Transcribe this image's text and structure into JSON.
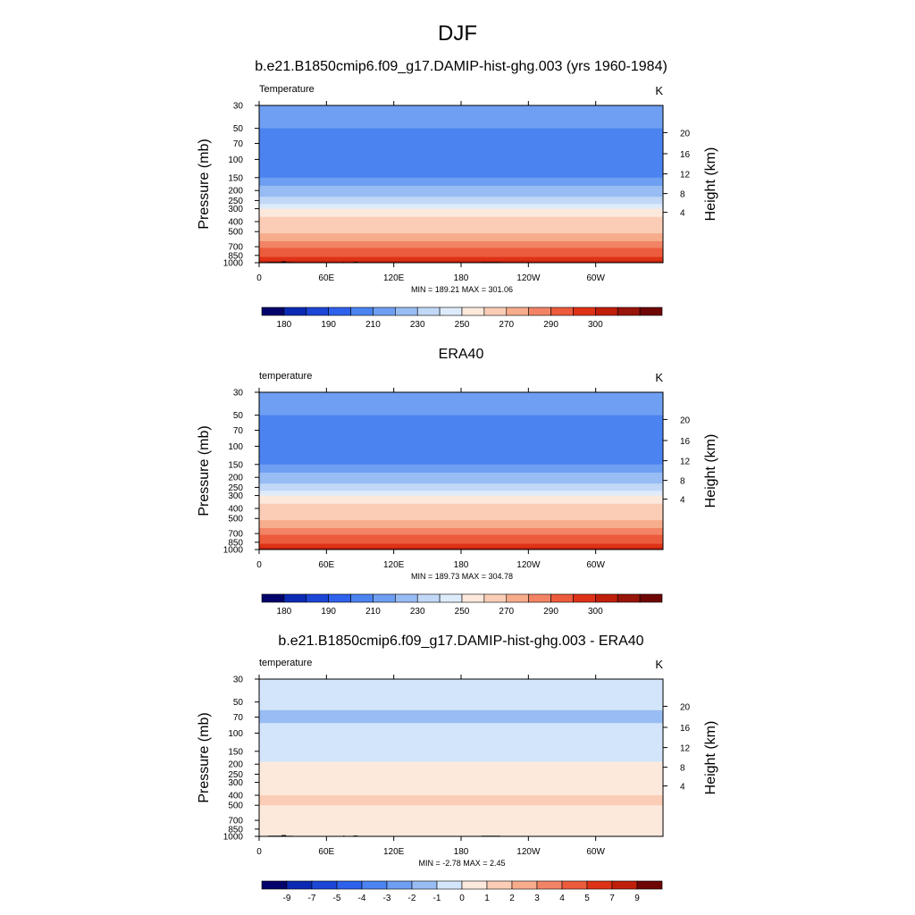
{
  "figure": {
    "title": "DJF"
  },
  "chart_data": [
    {
      "type": "heatmap",
      "title": "b.e21.B1850cmip6.f09_g17.DAMIP-hist-ghg.003 (yrs 1960-1984)",
      "left_string": "Temperature",
      "right_string": "K",
      "xlabel": "",
      "ylabel": "Pressure (mb)",
      "ylabel_right": "Height (km)",
      "x_ticks": [
        "0",
        "60E",
        "120E",
        "180",
        "120W",
        "60W"
      ],
      "x_range": [
        0,
        360
      ],
      "y_ticks": [
        "30",
        "50",
        "70",
        "100",
        "150",
        "200",
        "250",
        "300",
        "400",
        "500",
        "700",
        "850",
        "1000"
      ],
      "y_range": [
        30,
        1000
      ],
      "y_scale": "log",
      "height_ticks": [
        "20",
        "16",
        "12",
        "8",
        "4"
      ],
      "levels": [
        175,
        180,
        185,
        190,
        200,
        210,
        220,
        230,
        240,
        250,
        260,
        270,
        280,
        290,
        295,
        300
      ],
      "colorbar_labels": [
        "180",
        "190",
        "210",
        "230",
        "250",
        "270",
        "290",
        "300"
      ],
      "colorbar_colors": [
        "#03036b",
        "#0b2ab4",
        "#1c46d6",
        "#2f62ec",
        "#4b83f0",
        "#6e9ff2",
        "#98bcf4",
        "#c2d8f7",
        "#deebfa",
        "#fde9dc",
        "#fbcdb6",
        "#f7ac8c",
        "#f28465",
        "#ec5b3c",
        "#de3217",
        "#c01f0a",
        "#98150a",
        "#6e0606"
      ],
      "stats": "MIN = 189.21  MAX = 301.06",
      "min": 189.21,
      "max": 301.06,
      "field_profile": [
        {
          "p": 30,
          "value": 210
        },
        {
          "p": 40,
          "value": 205
        },
        {
          "p": 50,
          "value": 200
        },
        {
          "p": 60,
          "value": 195
        },
        {
          "p": 100,
          "value": 193
        },
        {
          "p": 130,
          "value": 196
        },
        {
          "p": 150,
          "value": 203
        },
        {
          "p": 180,
          "value": 208
        },
        {
          "p": 230,
          "value": 215
        },
        {
          "p": 270,
          "value": 225
        },
        {
          "p": 300,
          "value": 235
        },
        {
          "p": 360,
          "value": 245
        },
        {
          "p": 420,
          "value": 255
        },
        {
          "p": 520,
          "value": 262
        },
        {
          "p": 620,
          "value": 270
        },
        {
          "p": 720,
          "value": 278
        },
        {
          "p": 800,
          "value": 283
        },
        {
          "p": 880,
          "value": 288
        },
        {
          "p": 960,
          "value": 293
        },
        {
          "p": 1000,
          "value": 297
        }
      ],
      "show_topography": true
    },
    {
      "type": "heatmap",
      "title": "ERA40",
      "left_string": "temperature",
      "right_string": "K",
      "xlabel": "",
      "ylabel": "Pressure (mb)",
      "ylabel_right": "Height (km)",
      "x_ticks": [
        "0",
        "60E",
        "120E",
        "180",
        "120W",
        "60W"
      ],
      "x_range": [
        0,
        360
      ],
      "y_ticks": [
        "30",
        "50",
        "70",
        "100",
        "150",
        "200",
        "250",
        "300",
        "400",
        "500",
        "700",
        "850",
        "1000"
      ],
      "y_range": [
        30,
        1000
      ],
      "y_scale": "log",
      "height_ticks": [
        "20",
        "16",
        "12",
        "8",
        "4"
      ],
      "levels": [
        175,
        180,
        185,
        190,
        200,
        210,
        220,
        230,
        240,
        250,
        260,
        270,
        280,
        290,
        295,
        300
      ],
      "colorbar_labels": [
        "180",
        "190",
        "210",
        "230",
        "250",
        "270",
        "290",
        "300"
      ],
      "colorbar_colors": [
        "#03036b",
        "#0b2ab4",
        "#1c46d6",
        "#2f62ec",
        "#4b83f0",
        "#6e9ff2",
        "#98bcf4",
        "#c2d8f7",
        "#deebfa",
        "#fde9dc",
        "#fbcdb6",
        "#f7ac8c",
        "#f28465",
        "#ec5b3c",
        "#de3217",
        "#c01f0a",
        "#98150a",
        "#6e0606"
      ],
      "stats": "MIN = 189.73  MAX = 304.78",
      "min": 189.73,
      "max": 304.78,
      "field_profile": [
        {
          "p": 30,
          "value": 210
        },
        {
          "p": 40,
          "value": 205
        },
        {
          "p": 50,
          "value": 200
        },
        {
          "p": 60,
          "value": 195
        },
        {
          "p": 100,
          "value": 193
        },
        {
          "p": 130,
          "value": 196
        },
        {
          "p": 150,
          "value": 203
        },
        {
          "p": 180,
          "value": 208
        },
        {
          "p": 230,
          "value": 215
        },
        {
          "p": 270,
          "value": 225
        },
        {
          "p": 300,
          "value": 235
        },
        {
          "p": 360,
          "value": 245
        },
        {
          "p": 420,
          "value": 255
        },
        {
          "p": 520,
          "value": 262
        },
        {
          "p": 620,
          "value": 270
        },
        {
          "p": 720,
          "value": 278
        },
        {
          "p": 800,
          "value": 283
        },
        {
          "p": 880,
          "value": 288
        },
        {
          "p": 960,
          "value": 294
        },
        {
          "p": 1000,
          "value": 298
        }
      ],
      "show_topography": false
    },
    {
      "type": "heatmap",
      "title": "b.e21.B1850cmip6.f09_g17.DAMIP-hist-ghg.003 - ERA40",
      "left_string": "temperature",
      "right_string": "K",
      "xlabel": "",
      "ylabel": "Pressure (mb)",
      "ylabel_right": "Height (km)",
      "x_ticks": [
        "0",
        "60E",
        "120E",
        "180",
        "120W",
        "60W"
      ],
      "x_range": [
        0,
        360
      ],
      "y_ticks": [
        "30",
        "50",
        "70",
        "100",
        "150",
        "200",
        "250",
        "300",
        "400",
        "500",
        "700",
        "850",
        "1000"
      ],
      "y_range": [
        30,
        1000
      ],
      "y_scale": "log",
      "height_ticks": [
        "20",
        "16",
        "12",
        "8",
        "4"
      ],
      "levels": [
        -9,
        -7,
        -5,
        -4,
        -3,
        -2,
        -1,
        0,
        1,
        2,
        3,
        4,
        5,
        7,
        9
      ],
      "colorbar_labels": [
        "-9",
        "-7",
        "-5",
        "-4",
        "-3",
        "-2",
        "-1",
        "0",
        "1",
        "2",
        "3",
        "4",
        "5",
        "7",
        "9"
      ],
      "colorbar_colors": [
        "#03036b",
        "#0b2ab4",
        "#1c46d6",
        "#2f62ec",
        "#4b83f0",
        "#6e9ff2",
        "#98bcf4",
        "#d3e5fa",
        "#fde9dc",
        "#fbcdb6",
        "#f7ac8c",
        "#f28465",
        "#ec5b3c",
        "#de3217",
        "#c01f0a",
        "#6e0606"
      ],
      "stats": "MIN =  -2.78  MAX =   2.45",
      "min": -2.78,
      "max": 2.45,
      "field_profile": [
        {
          "p": 30,
          "value": -0.5
        },
        {
          "p": 50,
          "value": -0.6
        },
        {
          "p": 60,
          "value": -1.2
        },
        {
          "p": 70,
          "value": -1.5
        },
        {
          "p": 80,
          "value": -1.2
        },
        {
          "p": 100,
          "value": -0.5
        },
        {
          "p": 150,
          "value": -0.5
        },
        {
          "p": 190,
          "value": -0.3
        },
        {
          "p": 230,
          "value": 0.4
        },
        {
          "p": 300,
          "value": 0.6
        },
        {
          "p": 400,
          "value": 1.2
        },
        {
          "p": 500,
          "value": 1.1
        },
        {
          "p": 620,
          "value": 0.6
        },
        {
          "p": 750,
          "value": 0.4
        },
        {
          "p": 900,
          "value": 0.3
        },
        {
          "p": 1000,
          "value": 0.2
        }
      ],
      "show_topography": true
    }
  ]
}
